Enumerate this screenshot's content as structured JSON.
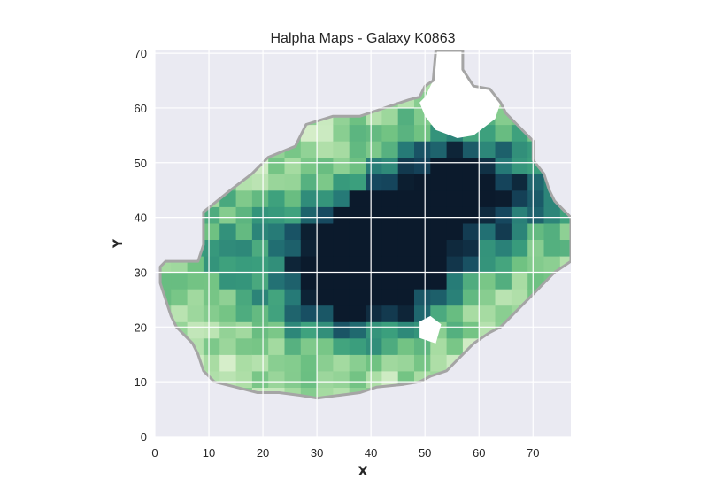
{
  "chart_data": {
    "type": "heatmap",
    "title": "Halpha Maps - Galaxy K0863",
    "xlabel": "X",
    "ylabel": "Y",
    "xlim": [
      0,
      77
    ],
    "ylim": [
      0,
      70.5
    ],
    "xticks": [
      0,
      10,
      20,
      30,
      40,
      50,
      60,
      70
    ],
    "yticks": [
      0,
      10,
      20,
      30,
      40,
      50,
      60,
      70
    ],
    "grid": true,
    "colormap": "YlGnBu-like (pale green to dark navy)",
    "colors": {
      "background": "#eaeaf2",
      "grid": "#ffffff",
      "contour": "#a5a5a5",
      "cmap_low": "#e9f5da",
      "cmap_mid": "#3a9e7d",
      "cmap_high": "#0b1a2c"
    },
    "map_outline": [
      [
        1,
        31
      ],
      [
        2,
        32
      ],
      [
        8,
        32
      ],
      [
        9,
        35
      ],
      [
        9,
        41
      ],
      [
        14,
        45
      ],
      [
        18,
        48
      ],
      [
        21,
        51
      ],
      [
        26,
        53
      ],
      [
        28,
        57
      ],
      [
        33,
        58.5
      ],
      [
        38,
        58.5
      ],
      [
        41,
        59.5
      ],
      [
        44,
        60.5
      ],
      [
        47,
        61.5
      ],
      [
        49,
        62
      ],
      [
        50,
        64
      ],
      [
        51.5,
        65
      ],
      [
        52,
        70.5
      ],
      [
        57,
        70.5
      ],
      [
        57,
        67
      ],
      [
        59,
        64
      ],
      [
        62,
        63.5
      ],
      [
        64,
        61
      ],
      [
        65,
        59
      ],
      [
        67,
        57
      ],
      [
        68,
        56
      ],
      [
        70,
        54
      ],
      [
        70,
        50.5
      ],
      [
        72,
        48
      ],
      [
        73,
        45
      ],
      [
        74,
        43
      ],
      [
        76,
        41
      ],
      [
        77,
        40
      ],
      [
        77,
        32
      ],
      [
        74,
        30
      ],
      [
        72,
        28
      ],
      [
        69,
        25
      ],
      [
        66,
        22
      ],
      [
        64,
        20
      ],
      [
        62,
        19
      ],
      [
        59,
        17
      ],
      [
        56,
        14
      ],
      [
        54,
        12
      ],
      [
        51,
        11
      ],
      [
        49,
        10
      ],
      [
        46,
        9.5
      ],
      [
        41,
        9
      ],
      [
        38,
        8
      ],
      [
        34,
        7.5
      ],
      [
        30,
        7
      ],
      [
        27,
        7.5
      ],
      [
        23,
        8
      ],
      [
        19,
        8
      ],
      [
        15,
        9
      ],
      [
        11,
        10
      ],
      [
        9,
        12
      ],
      [
        8,
        15
      ],
      [
        7,
        17
      ],
      [
        5,
        19
      ],
      [
        4,
        20
      ],
      [
        3,
        22
      ],
      [
        2,
        25
      ],
      [
        1,
        28
      ]
    ],
    "masked_regions": [
      [
        [
          50,
          62
        ],
        [
          51.5,
          65
        ],
        [
          52,
          70.5
        ],
        [
          57,
          70.5
        ],
        [
          57,
          67
        ],
        [
          59,
          64
        ],
        [
          62,
          63.5
        ],
        [
          64,
          61
        ],
        [
          63,
          58
        ],
        [
          59,
          55
        ],
        [
          56,
          54.5
        ],
        [
          52,
          56
        ],
        [
          50,
          58.5
        ],
        [
          49,
          61
        ]
      ],
      [
        [
          49,
          18
        ],
        [
          52,
          17
        ],
        [
          53,
          20.5
        ],
        [
          51,
          22
        ],
        [
          49,
          21
        ]
      ]
    ],
    "intensity_field": {
      "description": "relative Halpha intensity (0 = faint, 1 = brightest), peak near galaxy core",
      "peaks": [
        {
          "x": 38.5,
          "y": 33.5,
          "amplitude": 1.0
        },
        {
          "x": 44,
          "y": 30.5,
          "amplitude": 0.85
        },
        {
          "x": 49,
          "y": 43,
          "amplitude": 0.7
        },
        {
          "x": 57,
          "y": 47,
          "amplitude": 0.6
        },
        {
          "x": 66,
          "y": 43,
          "amplitude": 0.5
        },
        {
          "x": 14,
          "y": 34,
          "amplitude": 0.45
        },
        {
          "x": 32,
          "y": 26,
          "amplitude": 0.5
        }
      ]
    }
  }
}
